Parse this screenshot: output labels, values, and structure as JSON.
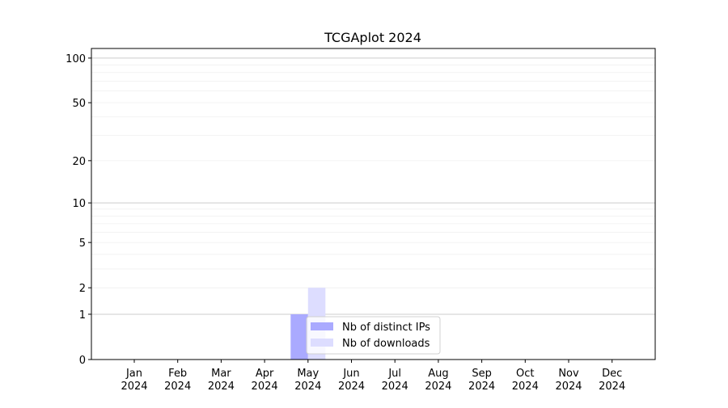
{
  "chart_data": {
    "type": "bar",
    "title": "TCGAplot 2024",
    "xlabel": "",
    "ylabel": "",
    "y_scale": "symlog (log10(1+y))",
    "ylim": [
      0,
      116
    ],
    "yticks": [
      0,
      1,
      2,
      5,
      10,
      20,
      50,
      100
    ],
    "grid": true,
    "legend_placement": "lower-center",
    "categories": [
      "Jan\n2024",
      "Feb\n2024",
      "Mar\n2024",
      "Apr\n2024",
      "May\n2024",
      "Jun\n2024",
      "Jul\n2024",
      "Aug\n2024",
      "Sep\n2024",
      "Oct\n2024",
      "Nov\n2024",
      "Dec\n2024"
    ],
    "series": [
      {
        "name": "Nb of distinct IPs",
        "color": "#aaaaff",
        "values": [
          0,
          0,
          0,
          0,
          1,
          0,
          0,
          0,
          0,
          0,
          0,
          0
        ]
      },
      {
        "name": "Nb of downloads",
        "color": "#ddddff",
        "values": [
          0,
          0,
          0,
          0,
          2,
          0,
          0,
          0,
          0,
          0,
          0,
          0
        ]
      }
    ]
  }
}
